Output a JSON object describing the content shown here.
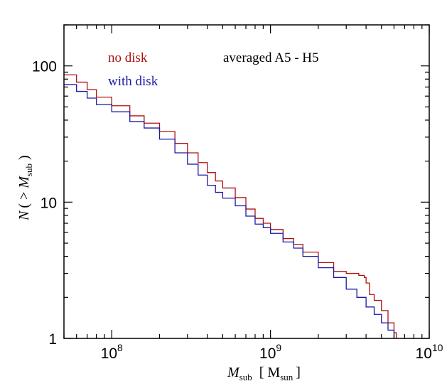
{
  "chart_data": {
    "type": "line",
    "title": "",
    "annotation": "averaged A5 - H5",
    "xlabel": {
      "main": "M",
      "sub": "sub",
      "units_open": "[ M",
      "units_sub": "sun",
      "units_close": "]"
    },
    "ylabel": {
      "main": "N",
      "open": "( > ",
      "var": "M",
      "sub": "sub",
      "close": " )"
    },
    "xscale": "log",
    "yscale": "log",
    "xlim": [
      50000000,
      10000000000
    ],
    "ylim": [
      1,
      200
    ],
    "x_tick_labels": [
      {
        "value": 100000000,
        "base": "10",
        "exp": "8"
      },
      {
        "value": 1000000000,
        "base": "10",
        "exp": "9"
      },
      {
        "value": 10000000000,
        "base": "10",
        "exp": "10"
      }
    ],
    "y_tick_labels": [
      {
        "value": 1,
        "text": "1"
      },
      {
        "value": 10,
        "text": "10"
      },
      {
        "value": 100,
        "text": "100"
      }
    ],
    "grid": false,
    "legend_position": "top-left",
    "series": [
      {
        "name": "no disk",
        "color": "#b01010",
        "points": [
          [
            50000000,
            86
          ],
          [
            60000000,
            76
          ],
          [
            70000000,
            67
          ],
          [
            80000000,
            59
          ],
          [
            100000000,
            51
          ],
          [
            130000000,
            43
          ],
          [
            160000000,
            38
          ],
          [
            200000000,
            33
          ],
          [
            250000000,
            27
          ],
          [
            300000000,
            23
          ],
          [
            350000000,
            19.5
          ],
          [
            400000000,
            16.5
          ],
          [
            450000000,
            14.3
          ],
          [
            500000000,
            12.7
          ],
          [
            600000000,
            10.8
          ],
          [
            700000000,
            8.9
          ],
          [
            800000000,
            7.6
          ],
          [
            900000000,
            7.0
          ],
          [
            1000000000,
            6.3
          ],
          [
            1200000000,
            5.4
          ],
          [
            1400000000,
            4.9
          ],
          [
            1600000000,
            4.3
          ],
          [
            2000000000,
            3.6
          ],
          [
            2500000000,
            3.1
          ],
          [
            3000000000,
            3.0
          ],
          [
            3600000000,
            2.9
          ],
          [
            3900000000,
            2.8
          ],
          [
            4000000000,
            2.55
          ],
          [
            4200000000,
            2.1
          ],
          [
            4500000000,
            1.9
          ],
          [
            5000000000,
            1.6
          ],
          [
            5500000000,
            1.3
          ],
          [
            6000000000,
            1.1
          ],
          [
            6200000000,
            1.0
          ]
        ]
      },
      {
        "name": "with disk",
        "color": "#1a1aa8",
        "points": [
          [
            50000000,
            73
          ],
          [
            60000000,
            65
          ],
          [
            70000000,
            58
          ],
          [
            80000000,
            52
          ],
          [
            100000000,
            46
          ],
          [
            130000000,
            39
          ],
          [
            160000000,
            35
          ],
          [
            200000000,
            29
          ],
          [
            250000000,
            23
          ],
          [
            300000000,
            19
          ],
          [
            350000000,
            15.8
          ],
          [
            400000000,
            13.3
          ],
          [
            450000000,
            11.8
          ],
          [
            500000000,
            10.7
          ],
          [
            600000000,
            9.4
          ],
          [
            700000000,
            7.9
          ],
          [
            800000000,
            6.9
          ],
          [
            900000000,
            6.5
          ],
          [
            1000000000,
            5.9
          ],
          [
            1200000000,
            5.1
          ],
          [
            1400000000,
            4.6
          ],
          [
            1600000000,
            4.0
          ],
          [
            2000000000,
            3.3
          ],
          [
            2500000000,
            2.8
          ],
          [
            3000000000,
            2.3
          ],
          [
            3500000000,
            2.0
          ],
          [
            4000000000,
            1.7
          ],
          [
            4500000000,
            1.5
          ],
          [
            5000000000,
            1.3
          ],
          [
            5500000000,
            1.15
          ],
          [
            6000000000,
            1.0
          ]
        ]
      }
    ]
  }
}
